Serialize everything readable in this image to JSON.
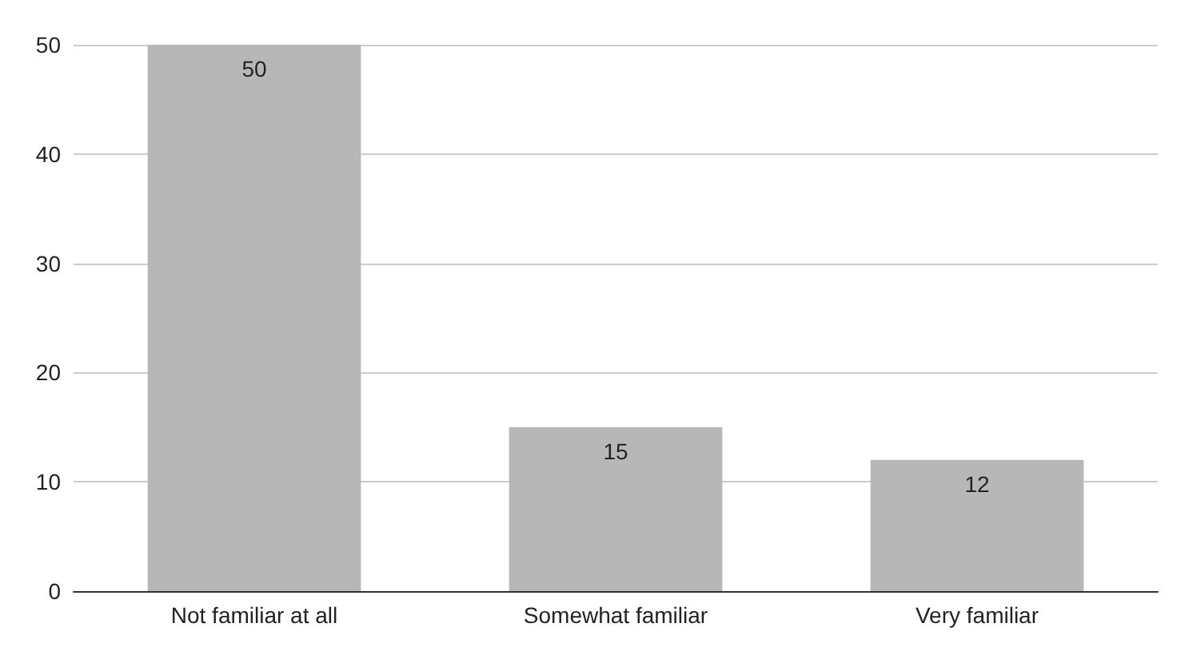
{
  "chart_data": {
    "type": "bar",
    "categories": [
      "Not familiar at all",
      "Somewhat familiar",
      "Very familiar"
    ],
    "values": [
      50,
      15,
      12
    ],
    "color": "#b7b7b7",
    "ylim": [
      0,
      50
    ],
    "yticks": [
      0,
      10,
      20,
      30,
      40,
      50
    ],
    "grid": "y",
    "data_labels": true
  }
}
